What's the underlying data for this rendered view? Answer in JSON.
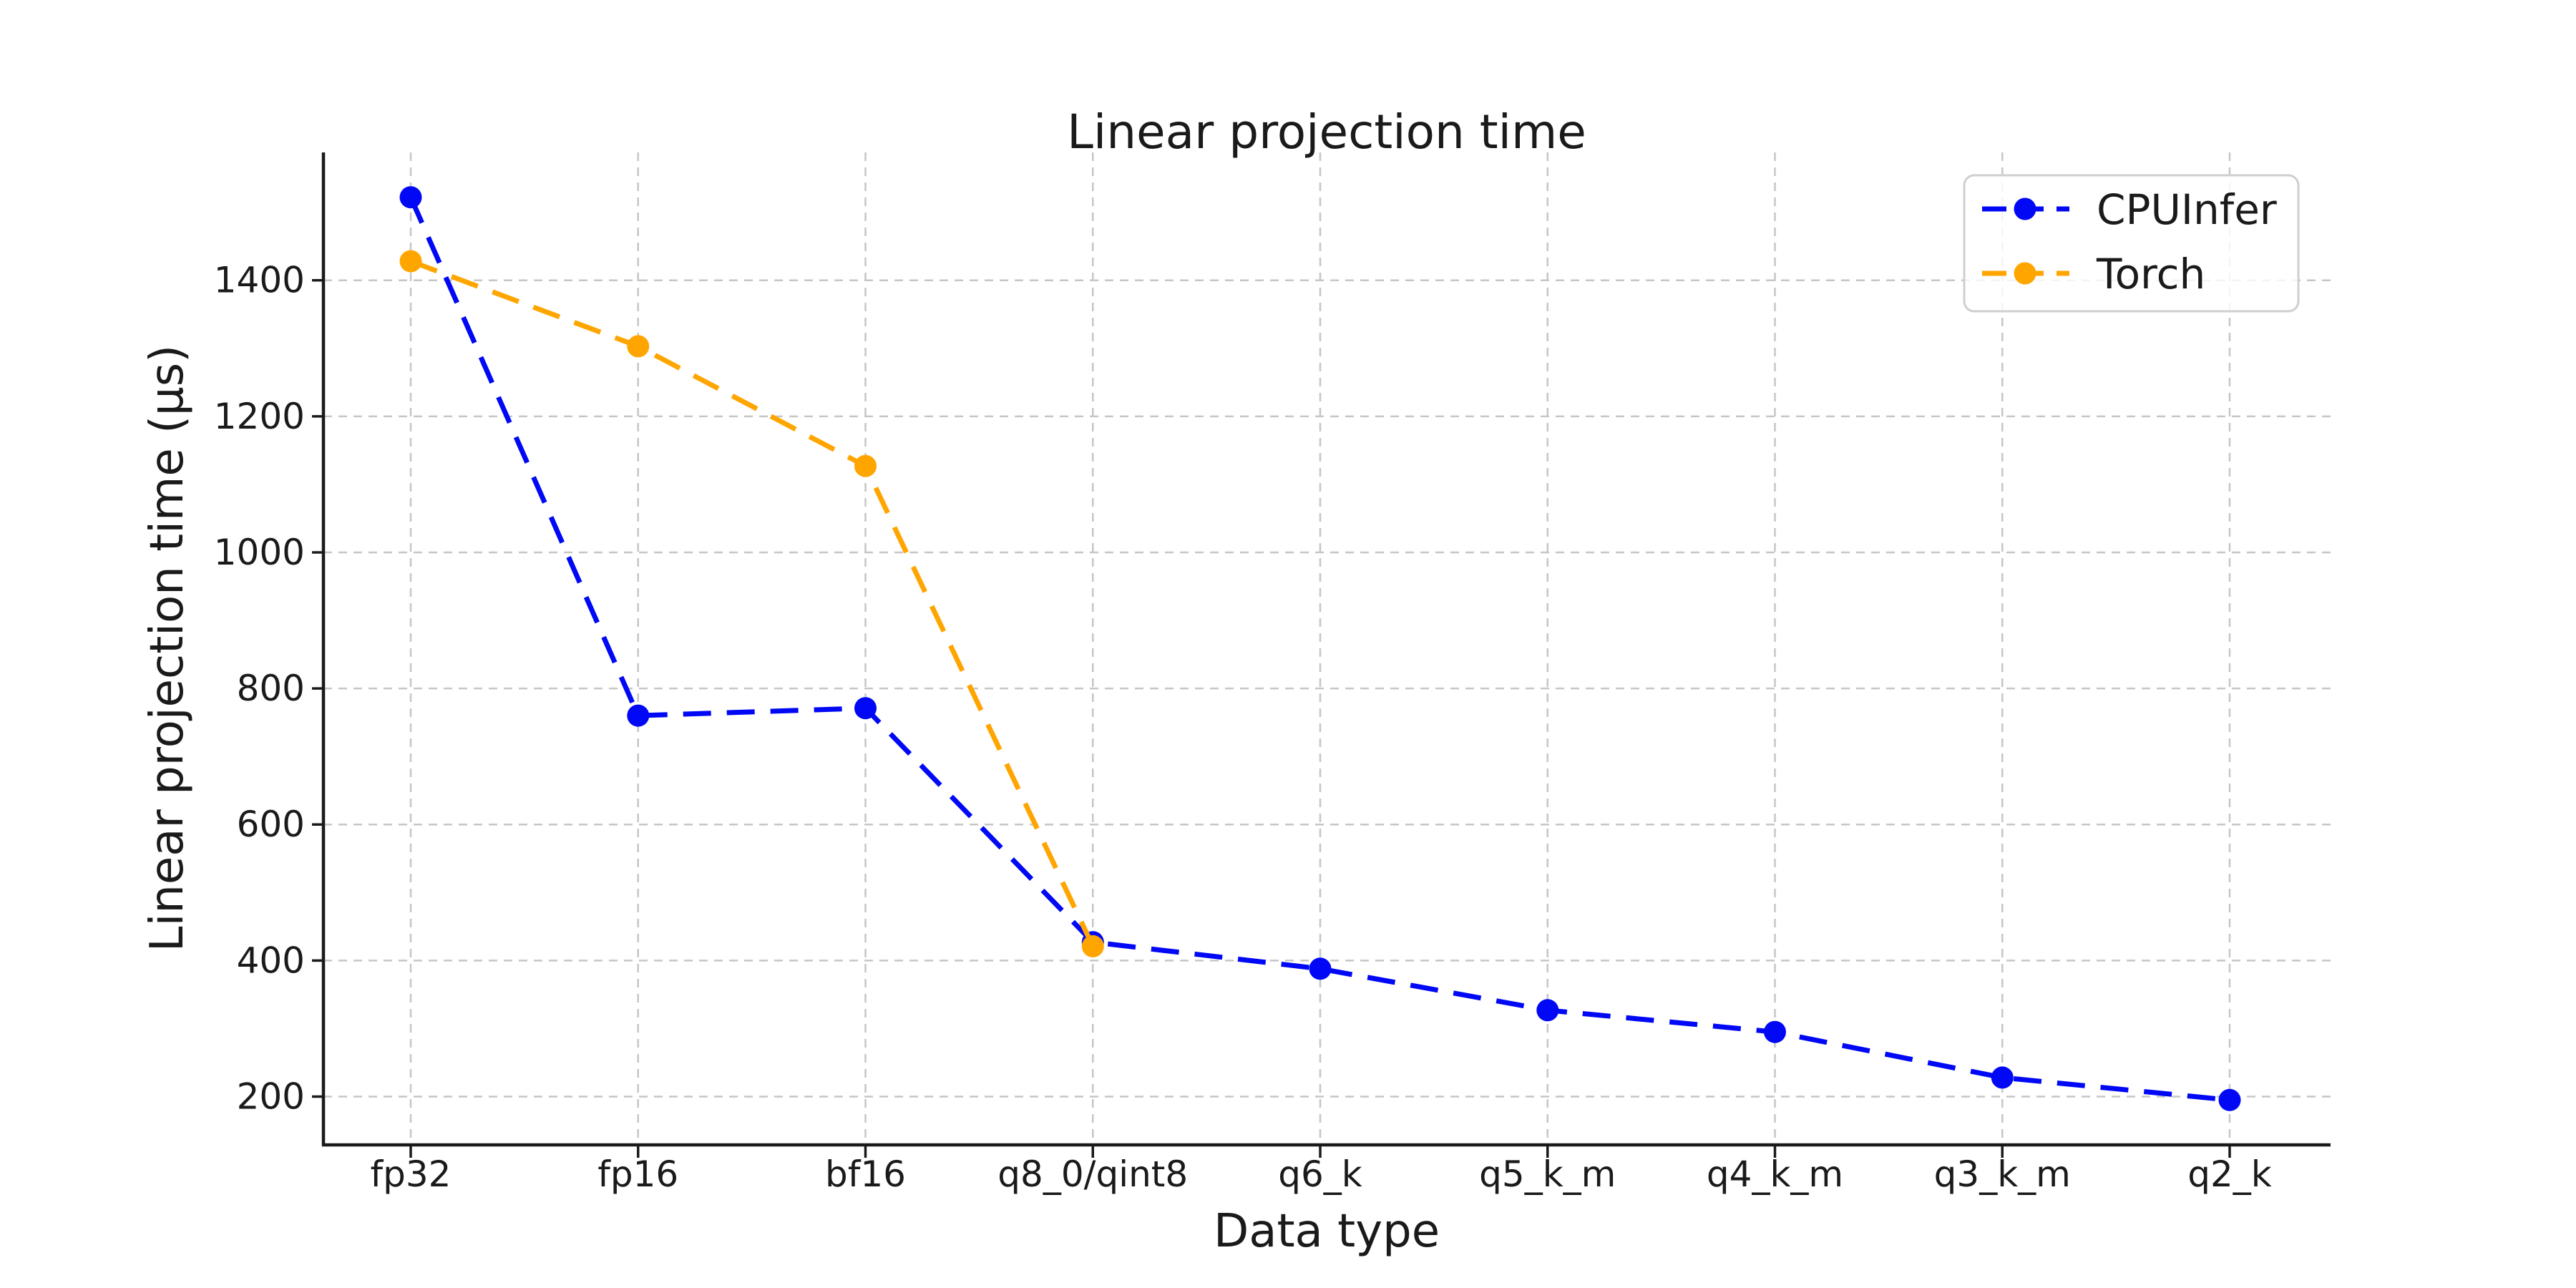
{
  "figure": {
    "background": "#ffffff",
    "text_color": "#1a1a1a",
    "grid_color": "#c6c6c6",
    "legend_border_color": "#cfcfcf"
  },
  "chart_data": {
    "type": "line",
    "title": "Linear projection time",
    "xlabel": "Data type",
    "ylabel": "Linear projection time (µs)",
    "categories": [
      "fp32",
      "fp16",
      "bf16",
      "q8_0/qint8",
      "q6_k",
      "q5_k_m",
      "q4_k_m",
      "q3_k_m",
      "q2_k"
    ],
    "series": [
      {
        "name": "CPUInfer",
        "color": "#0008f5",
        "linestyle": "dashed",
        "marker": "circle",
        "values": [
          1522,
          760,
          771,
          427,
          388,
          327,
          295,
          228,
          195
        ]
      },
      {
        "name": "Torch",
        "color": "#ffa500",
        "linestyle": "dashed",
        "marker": "circle",
        "values": [
          1428,
          1303,
          1127,
          421,
          null,
          null,
          null,
          null,
          null
        ]
      }
    ],
    "yticks": [
      200,
      400,
      600,
      800,
      1000,
      1200,
      1400
    ],
    "ylim": [
      129,
      1588
    ],
    "grid": true,
    "legend_position": "upper right"
  }
}
